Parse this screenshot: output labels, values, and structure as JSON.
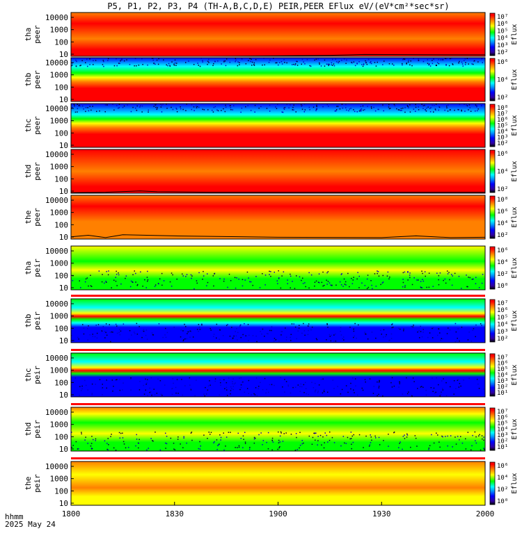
{
  "title": "P5, P1, P2, P3, P4 (TH-A,B,C,D,E) PEIR,PEER EFlux eV/(eV*cm²*sec*sr)",
  "time_axis": {
    "label1": "hhmm",
    "label2": "2025 May 24",
    "ticks": [
      "1800",
      "1830",
      "1900",
      "1930",
      "2000"
    ]
  },
  "colors": {
    "black": "#000000",
    "blue": "#0000ff",
    "cyan": "#00ffff",
    "green": "#00ff00",
    "yellow": "#ffff00",
    "orange": "#ff8000",
    "red": "#ff0000"
  },
  "chart_data": [
    {
      "type": "heatmap",
      "probe": "tha",
      "species": "peer",
      "ylabel_top": "tha",
      "ylabel_bottom": "peer",
      "yticks": [
        "10000",
        "1000",
        "100",
        "10"
      ],
      "ylim": [
        10,
        30000
      ],
      "yscale": "log",
      "colorbar_ticks": [
        "10⁷",
        "10⁶",
        "10⁵",
        "10⁴",
        "10³",
        "10²"
      ],
      "colorbar_label": "Eflux",
      "bands": [
        [
          "orange",
          0.0
        ],
        [
          "red",
          0.25
        ],
        [
          "orange",
          0.6
        ],
        [
          "red",
          0.85
        ]
      ],
      "noise": "none",
      "overlay_line": [
        [
          1800,
          10
        ],
        [
          1840,
          10
        ],
        [
          1900,
          11
        ],
        [
          1915,
          12
        ],
        [
          1925,
          14
        ],
        [
          1960,
          13
        ],
        [
          2000,
          14
        ]
      ]
    },
    {
      "type": "heatmap",
      "probe": "thb",
      "species": "peer",
      "ylabel_top": "thb",
      "ylabel_bottom": "peer",
      "yticks": [
        "10000",
        "1000",
        "100",
        "10"
      ],
      "ylim": [
        10,
        30000
      ],
      "yscale": "log",
      "colorbar_ticks": [
        "10⁶",
        "10⁴",
        "10²"
      ],
      "colorbar_label": "Eflux",
      "bands": [
        [
          "blue",
          0.0
        ],
        [
          "cyan",
          0.2
        ],
        [
          "green",
          0.35
        ],
        [
          "yellow",
          0.45
        ],
        [
          "orange",
          0.55
        ],
        [
          "red",
          0.7
        ]
      ],
      "noise": "top",
      "overlay_line": []
    },
    {
      "type": "heatmap",
      "probe": "thc",
      "species": "peer",
      "ylabel_top": "thc",
      "ylabel_bottom": "peer",
      "yticks": [
        "10000",
        "1000",
        "100",
        "10"
      ],
      "ylim": [
        10,
        30000
      ],
      "yscale": "log",
      "colorbar_ticks": [
        "10⁸",
        "10⁷",
        "10⁶",
        "10⁵",
        "10⁴",
        "10³",
        "10²"
      ],
      "colorbar_label": "Eflux",
      "bands": [
        [
          "blue",
          0.0
        ],
        [
          "cyan",
          0.25
        ],
        [
          "green",
          0.35
        ],
        [
          "yellow",
          0.45
        ],
        [
          "orange",
          0.55
        ],
        [
          "red",
          0.7
        ]
      ],
      "noise": "top",
      "overlay_line": []
    },
    {
      "type": "heatmap",
      "probe": "thd",
      "species": "peer",
      "ylabel_top": "thd",
      "ylabel_bottom": "peer",
      "yticks": [
        "10000",
        "1000",
        "100",
        "10"
      ],
      "ylim": [
        10,
        30000
      ],
      "yscale": "log",
      "colorbar_ticks": [
        "10⁶",
        "10⁴",
        "10²"
      ],
      "colorbar_label": "Eflux",
      "bands": [
        [
          "red",
          0.0
        ],
        [
          "orange",
          0.5
        ],
        [
          "red",
          0.85
        ]
      ],
      "noise": "none",
      "overlay_line": [
        [
          1800,
          11
        ],
        [
          1810,
          12
        ],
        [
          1820,
          15
        ],
        [
          1825,
          13
        ],
        [
          1840,
          12
        ],
        [
          1900,
          12
        ],
        [
          2000,
          12
        ]
      ]
    },
    {
      "type": "heatmap",
      "probe": "the",
      "species": "peer",
      "ylabel_top": "the",
      "ylabel_bottom": "peer",
      "yticks": [
        "10000",
        "1000",
        "100",
        "10"
      ],
      "ylim": [
        10,
        30000
      ],
      "yscale": "log",
      "colorbar_ticks": [
        "10⁸",
        "10⁶",
        "10⁴",
        "10²"
      ],
      "colorbar_label": "Eflux",
      "bands": [
        [
          "orange",
          0.0
        ],
        [
          "red",
          0.25
        ],
        [
          "orange",
          0.6
        ]
      ],
      "noise": "none",
      "overlay_line": [
        [
          1800,
          15
        ],
        [
          1805,
          20
        ],
        [
          1810,
          13
        ],
        [
          1815,
          22
        ],
        [
          1830,
          18
        ],
        [
          1860,
          14
        ],
        [
          1930,
          13
        ],
        [
          1940,
          18
        ],
        [
          1950,
          13
        ],
        [
          2000,
          14
        ]
      ]
    },
    {
      "type": "heatmap",
      "probe": "tha",
      "species": "peir",
      "ylabel_top": "tha",
      "ylabel_bottom": "peir",
      "yticks": [
        "10000",
        "1000",
        "100",
        "10"
      ],
      "ylim": [
        10,
        30000
      ],
      "yscale": "log",
      "colorbar_ticks": [
        "10⁶",
        "10⁴",
        "10²",
        "10⁰"
      ],
      "colorbar_label": "Eflux",
      "bands": [
        [
          "yellow",
          0.0
        ],
        [
          "green",
          0.35
        ],
        [
          "yellow",
          0.55
        ],
        [
          "green",
          0.75
        ]
      ],
      "noise": "bottom",
      "overlay_line": []
    },
    {
      "type": "heatmap",
      "probe": "thb",
      "species": "peir",
      "ylabel_top": "thb",
      "ylabel_bottom": "peir",
      "yticks": [
        "10000",
        "1000",
        "100",
        "10"
      ],
      "ylim": [
        10,
        30000
      ],
      "yscale": "log",
      "colorbar_ticks": [
        "10⁷",
        "10⁶",
        "10⁵",
        "10⁴",
        "10³",
        "10²"
      ],
      "colorbar_label": "Eflux",
      "bands": [
        [
          "green",
          0.0
        ],
        [
          "cyan",
          0.2
        ],
        [
          "yellow",
          0.33
        ],
        [
          "red",
          0.4
        ],
        [
          "green",
          0.47
        ],
        [
          "cyan",
          0.55
        ],
        [
          "blue",
          0.65
        ]
      ],
      "noise": "bottom",
      "overlay_line": []
    },
    {
      "type": "heatmap",
      "probe": "thc",
      "species": "peir",
      "ylabel_top": "thc",
      "ylabel_bottom": "peir",
      "yticks": [
        "10000",
        "1000",
        "100",
        "10"
      ],
      "ylim": [
        10,
        30000
      ],
      "yscale": "log",
      "colorbar_ticks": [
        "10⁷",
        "10⁶",
        "10⁵",
        "10⁴",
        "10³",
        "10²",
        "10¹"
      ],
      "colorbar_label": "Eflux",
      "bands": [
        [
          "green",
          0.0
        ],
        [
          "cyan",
          0.2
        ],
        [
          "yellow",
          0.33
        ],
        [
          "red",
          0.4
        ],
        [
          "green",
          0.47
        ],
        [
          "blue",
          0.55
        ]
      ],
      "noise": "bottom",
      "overlay_line": []
    },
    {
      "type": "heatmap",
      "probe": "thd",
      "species": "peir",
      "ylabel_top": "thd",
      "ylabel_bottom": "peir",
      "yticks": [
        "10000",
        "1000",
        "100",
        "10"
      ],
      "ylim": [
        10,
        30000
      ],
      "yscale": "log",
      "colorbar_ticks": [
        "10⁷",
        "10⁶",
        "10⁵",
        "10⁴",
        "10³",
        "10²",
        "10¹"
      ],
      "colorbar_label": "Eflux",
      "bands": [
        [
          "orange",
          0.0
        ],
        [
          "yellow",
          0.15
        ],
        [
          "green",
          0.35
        ],
        [
          "yellow",
          0.6
        ],
        [
          "green",
          0.8
        ]
      ],
      "noise": "bottom",
      "overlay_line": []
    },
    {
      "type": "heatmap",
      "probe": "the",
      "species": "peir",
      "ylabel_top": "the",
      "ylabel_bottom": "peir",
      "yticks": [
        "10000",
        "1000",
        "100",
        "10"
      ],
      "ylim": [
        10,
        30000
      ],
      "yscale": "log",
      "colorbar_ticks": [
        "10⁶",
        "10⁴",
        "10²",
        "10⁰"
      ],
      "colorbar_label": "Eflux",
      "bands": [
        [
          "orange",
          0.0
        ],
        [
          "yellow",
          0.3
        ],
        [
          "orange",
          0.6
        ],
        [
          "yellow",
          0.8
        ]
      ],
      "noise": "none",
      "overlay_line": []
    }
  ]
}
